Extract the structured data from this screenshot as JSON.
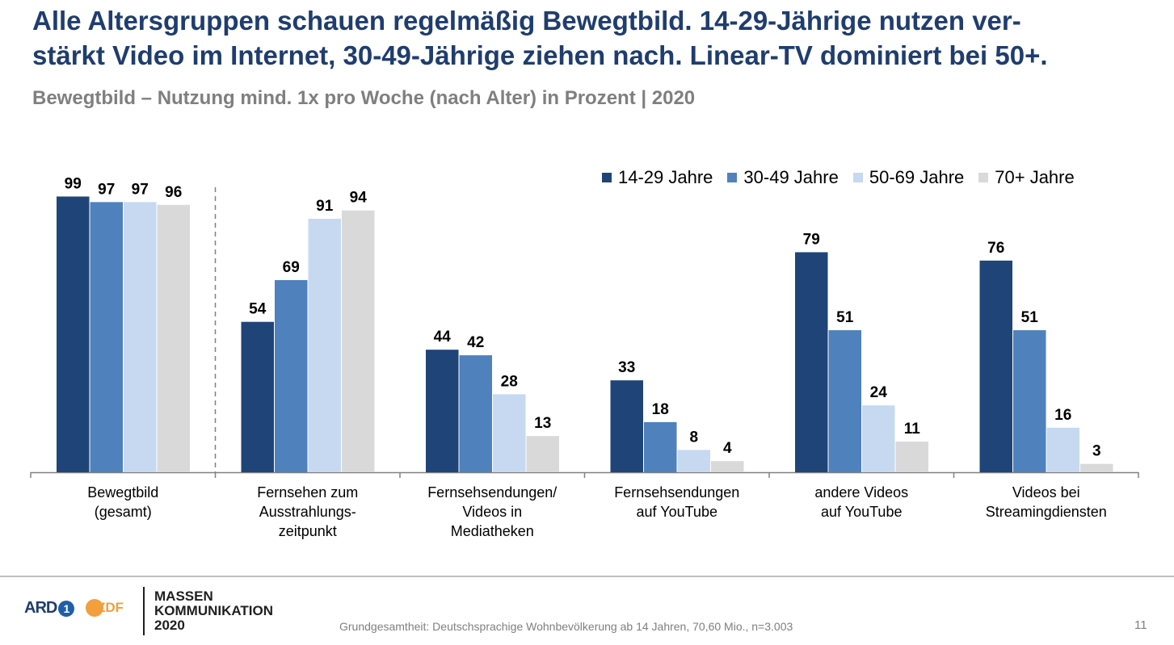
{
  "headline": {
    "line1": "Alle Altersgruppen schauen regelmäßig Bewegtbild. 14-29-Jährige nutzen ver-",
    "line2": "stärkt Video im Internet, 30-49-Jährige ziehen nach. Linear-TV dominiert bei 50+."
  },
  "chart_data": {
    "type": "bar",
    "title": "Bewegtbild – Nutzung mind. 1x pro Woche (nach Alter) in Prozent | 2020",
    "xlabel": "",
    "ylabel": "",
    "ylim": [
      0,
      100
    ],
    "grid": false,
    "legend_position": "top-right",
    "categories": [
      [
        "Bewegtbild",
        "(gesamt)"
      ],
      [
        "Fernsehen zum",
        "Ausstrahlungs-",
        "zeitpunkt"
      ],
      [
        "Fernsehsendungen/",
        "Videos in",
        "Mediatheken"
      ],
      [
        "Fernsehsendungen",
        "auf YouTube"
      ],
      [
        "andere Videos",
        "auf YouTube"
      ],
      [
        "Videos bei",
        "Streamingdiensten"
      ]
    ],
    "series": [
      {
        "name": "14-29 Jahre",
        "color": "#1f4478",
        "values": [
          99,
          54,
          44,
          33,
          79,
          76
        ]
      },
      {
        "name": "30-49 Jahre",
        "color": "#4f81bd",
        "values": [
          97,
          69,
          42,
          18,
          51,
          51
        ]
      },
      {
        "name": "50-69 Jahre",
        "color": "#c6d9f1",
        "values": [
          97,
          91,
          28,
          8,
          24,
          16
        ]
      },
      {
        "name": "70+ Jahre",
        "color": "#d9d9d9",
        "values": [
          96,
          94,
          13,
          4,
          11,
          3
        ]
      }
    ]
  },
  "footer": {
    "ard_label": "ARD",
    "ard_number": "1",
    "zdf_label": "ZDF",
    "brand_line1": "MASSEN",
    "brand_line2": "KOMMUNIKATION",
    "brand_line3": "2020",
    "source": "Grundgesamtheit: Deutschsprachige Wohnbevölkerung ab 14 Jahren, 70,60 Mio., n=3.003",
    "page_number": "11"
  }
}
